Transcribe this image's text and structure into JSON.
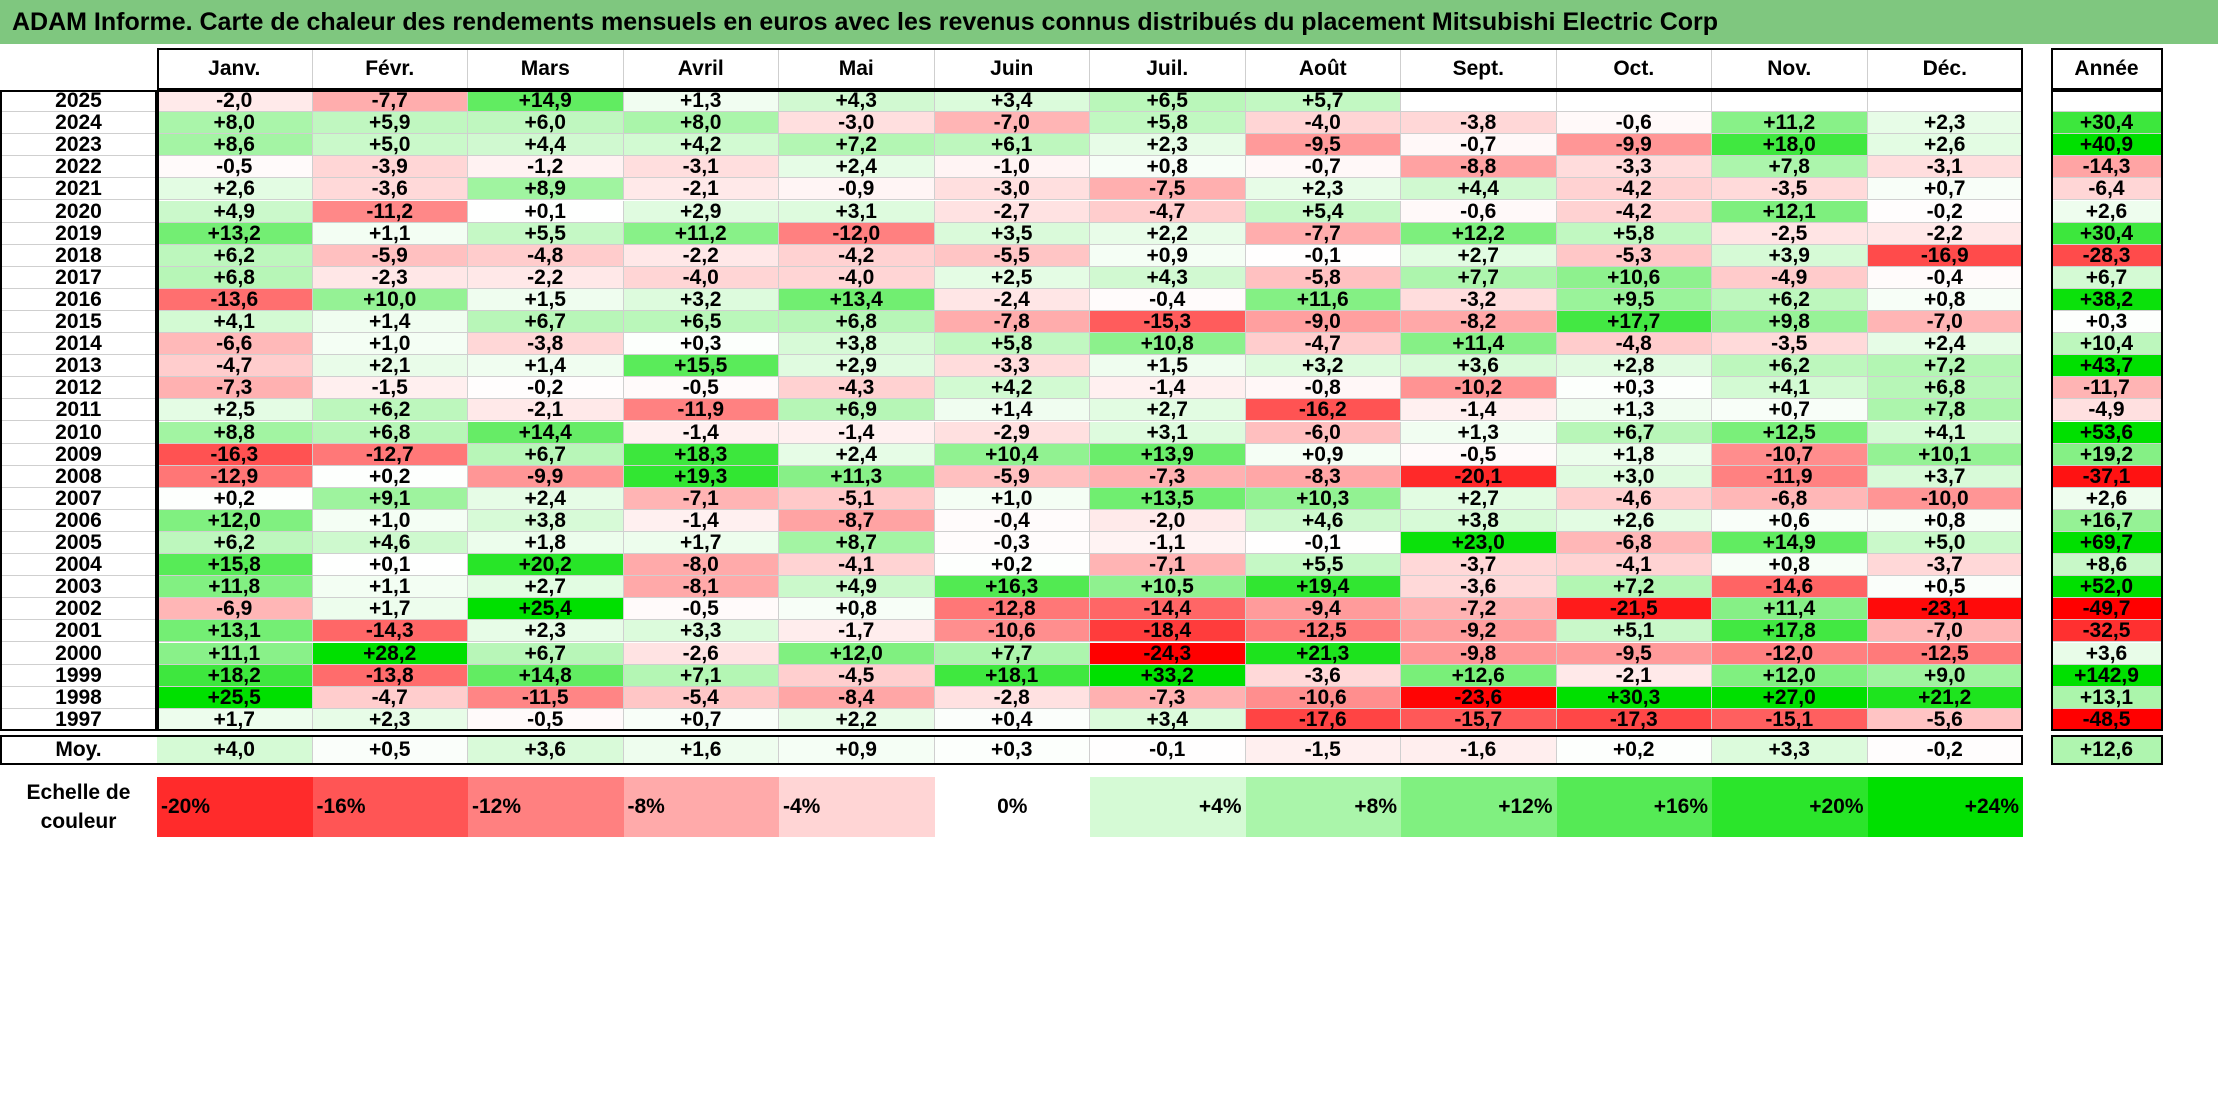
{
  "title": "ADAM Informe. Carte de chaleur des rendements mensuels en euros avec les revenus connus distribués du placement Mitsubishi Electric Corp",
  "chart_data": {
    "type": "heatmap",
    "months": [
      "Janv.",
      "Févr.",
      "Mars",
      "Avril",
      "Mai",
      "Juin",
      "Juil.",
      "Août",
      "Sept.",
      "Oct.",
      "Nov.",
      "Déc."
    ],
    "annual_header": "Année",
    "rows": [
      {
        "year": "2025",
        "values": [
          -2.0,
          -7.7,
          14.9,
          1.3,
          4.3,
          3.4,
          6.5,
          5.7,
          null,
          null,
          null,
          null
        ],
        "annual": null
      },
      {
        "year": "2024",
        "values": [
          8.0,
          5.9,
          6.0,
          8.0,
          -3.0,
          -7.0,
          5.8,
          -4.0,
          -3.8,
          -0.6,
          11.2,
          2.3
        ],
        "annual": 30.4
      },
      {
        "year": "2023",
        "values": [
          8.6,
          5.0,
          4.4,
          4.2,
          7.2,
          6.1,
          2.3,
          -9.5,
          -0.7,
          -9.9,
          18.0,
          2.6
        ],
        "annual": 40.9
      },
      {
        "year": "2022",
        "values": [
          -0.5,
          -3.9,
          -1.2,
          -3.1,
          2.4,
          -1.0,
          0.8,
          -0.7,
          -8.8,
          -3.3,
          7.8,
          -3.1
        ],
        "annual": -14.3
      },
      {
        "year": "2021",
        "values": [
          2.6,
          -3.6,
          8.9,
          -2.1,
          -0.9,
          -3.0,
          -7.5,
          2.3,
          4.4,
          -4.2,
          -3.5,
          0.7
        ],
        "annual": -6.4
      },
      {
        "year": "2020",
        "values": [
          4.9,
          -11.2,
          0.1,
          2.9,
          3.1,
          -2.7,
          -4.7,
          5.4,
          -0.6,
          -4.2,
          12.1,
          -0.2
        ],
        "annual": 2.6
      },
      {
        "year": "2019",
        "values": [
          13.2,
          1.1,
          5.5,
          11.2,
          -12.0,
          3.5,
          2.2,
          -7.7,
          12.2,
          5.8,
          -2.5,
          -2.2
        ],
        "annual": 30.4
      },
      {
        "year": "2018",
        "values": [
          6.2,
          -5.9,
          -4.8,
          -2.2,
          -4.2,
          -5.5,
          0.9,
          -0.1,
          2.7,
          -5.3,
          3.9,
          -16.9
        ],
        "annual": -28.3
      },
      {
        "year": "2017",
        "values": [
          6.8,
          -2.3,
          -2.2,
          -4.0,
          -4.0,
          2.5,
          4.3,
          -5.8,
          7.7,
          10.6,
          -4.9,
          -0.4
        ],
        "annual": 6.7
      },
      {
        "year": "2016",
        "values": [
          -13.6,
          10.0,
          1.5,
          3.2,
          13.4,
          -2.4,
          -0.4,
          11.6,
          -3.2,
          9.5,
          6.2,
          0.8
        ],
        "annual": 38.2
      },
      {
        "year": "2015",
        "values": [
          4.1,
          1.4,
          6.7,
          6.5,
          6.8,
          -7.8,
          -15.3,
          -9.0,
          -8.2,
          17.7,
          9.8,
          -7.0
        ],
        "annual": 0.3
      },
      {
        "year": "2014",
        "values": [
          -6.6,
          1.0,
          -3.8,
          0.3,
          3.8,
          5.8,
          10.8,
          -4.7,
          11.4,
          -4.8,
          -3.5,
          2.4
        ],
        "annual": 10.4
      },
      {
        "year": "2013",
        "values": [
          -4.7,
          2.1,
          1.4,
          15.5,
          2.9,
          -3.3,
          1.5,
          3.2,
          3.6,
          2.8,
          6.2,
          7.2
        ],
        "annual": 43.7
      },
      {
        "year": "2012",
        "values": [
          -7.3,
          -1.5,
          -0.2,
          -0.5,
          -4.3,
          4.2,
          -1.4,
          -0.8,
          -10.2,
          0.3,
          4.1,
          6.8
        ],
        "annual": -11.7
      },
      {
        "year": "2011",
        "values": [
          2.5,
          6.2,
          -2.1,
          -11.9,
          6.9,
          1.4,
          2.7,
          -16.2,
          -1.4,
          1.3,
          0.7,
          7.8
        ],
        "annual": -4.9
      },
      {
        "year": "2010",
        "values": [
          8.8,
          6.8,
          14.4,
          -1.4,
          -1.4,
          -2.9,
          3.1,
          -6.0,
          1.3,
          6.7,
          12.5,
          4.1
        ],
        "annual": 53.6
      },
      {
        "year": "2009",
        "values": [
          -16.3,
          -12.7,
          6.7,
          18.3,
          2.4,
          10.4,
          13.9,
          0.9,
          -0.5,
          1.8,
          -10.7,
          10.1
        ],
        "annual": 19.2
      },
      {
        "year": "2008",
        "values": [
          -12.9,
          0.2,
          -9.9,
          19.3,
          11.3,
          -5.9,
          -7.3,
          -8.3,
          -20.1,
          3.0,
          -11.9,
          3.7
        ],
        "annual": -37.1
      },
      {
        "year": "2007",
        "values": [
          0.2,
          9.1,
          2.4,
          -7.1,
          -5.1,
          1.0,
          13.5,
          10.3,
          2.7,
          -4.6,
          -6.8,
          -10.0
        ],
        "annual": 2.6
      },
      {
        "year": "2006",
        "values": [
          12.0,
          1.0,
          3.8,
          -1.4,
          -8.7,
          -0.4,
          -2.0,
          4.6,
          3.8,
          2.6,
          0.6,
          0.8
        ],
        "annual": 16.7
      },
      {
        "year": "2005",
        "values": [
          6.2,
          4.6,
          1.8,
          1.7,
          8.7,
          -0.3,
          -1.1,
          -0.1,
          23.0,
          -6.8,
          14.9,
          5.0
        ],
        "annual": 69.7
      },
      {
        "year": "2004",
        "values": [
          15.8,
          0.1,
          20.2,
          -8.0,
          -4.1,
          0.2,
          -7.1,
          5.5,
          -3.7,
          -4.1,
          0.8,
          -3.7
        ],
        "annual": 8.6
      },
      {
        "year": "2003",
        "values": [
          11.8,
          1.1,
          2.7,
          -8.1,
          4.9,
          16.3,
          10.5,
          19.4,
          -3.6,
          7.2,
          -14.6,
          0.5
        ],
        "annual": 52.0
      },
      {
        "year": "2002",
        "values": [
          -6.9,
          1.7,
          25.4,
          -0.5,
          0.8,
          -12.8,
          -14.4,
          -9.4,
          -7.2,
          -21.5,
          11.4,
          -23.1
        ],
        "annual": -49.7
      },
      {
        "year": "2001",
        "values": [
          13.1,
          -14.3,
          2.3,
          3.3,
          -1.7,
          -10.6,
          -18.4,
          -12.5,
          -9.2,
          5.1,
          17.8,
          -7.0
        ],
        "annual": -32.5
      },
      {
        "year": "2000",
        "values": [
          11.1,
          28.2,
          6.7,
          -2.6,
          12.0,
          7.7,
          -24.3,
          21.3,
          -9.8,
          -9.5,
          -12.0,
          -12.5
        ],
        "annual": 3.6
      },
      {
        "year": "1999",
        "values": [
          18.2,
          -13.8,
          14.8,
          7.1,
          -4.5,
          18.1,
          33.2,
          -3.6,
          12.6,
          -2.1,
          12.0,
          9.0
        ],
        "annual": 142.9
      },
      {
        "year": "1998",
        "values": [
          25.5,
          -4.7,
          -11.5,
          -5.4,
          -8.4,
          -2.8,
          -7.3,
          -10.6,
          -23.6,
          30.3,
          27.0,
          21.2
        ],
        "annual": 13.1
      },
      {
        "year": "1997",
        "values": [
          1.7,
          2.3,
          -0.5,
          0.7,
          2.2,
          0.4,
          3.4,
          -17.6,
          -15.7,
          -17.3,
          -15.1,
          -5.6
        ],
        "annual": -48.5
      }
    ],
    "average": {
      "label": "Moy.",
      "values": [
        4.0,
        0.5,
        3.6,
        1.6,
        0.9,
        0.3,
        -0.1,
        -1.5,
        -1.6,
        0.2,
        3.3,
        -0.2
      ],
      "annual": 12.6
    },
    "scale": {
      "label": "Echelle de couleur",
      "stops": [
        "-20%",
        "-16%",
        "-12%",
        "-8%",
        "-4%",
        "0%",
        "+4%",
        "+8%",
        "+12%",
        "+16%",
        "+20%",
        "+24%"
      ],
      "stop_values": [
        -20,
        -16,
        -12,
        -8,
        -4,
        0,
        4,
        8,
        12,
        16,
        20,
        24
      ]
    },
    "colors": {
      "negative_max": "#ff0000",
      "neutral": "#ffffff",
      "positive_max": "#00e000"
    }
  }
}
